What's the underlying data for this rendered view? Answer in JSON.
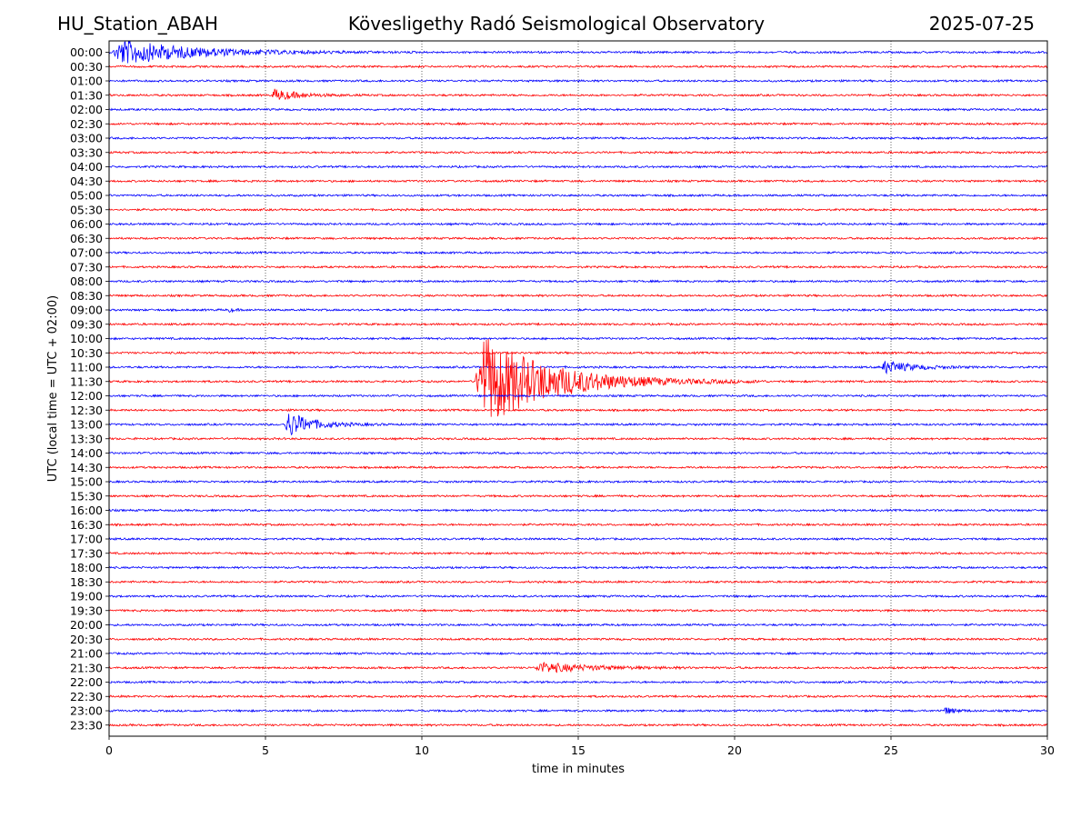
{
  "header": {
    "station": "HU_Station_ABAH",
    "title": "Kövesligethy Radó Seismological Observatory",
    "date": "2025-07-25"
  },
  "chart_data": {
    "type": "line",
    "subtype": "helicorder",
    "xlabel": "time in minutes",
    "ylabel": "UTC (local time = UTC + 02:00)",
    "xlim": [
      0,
      30
    ],
    "x_ticks": [
      0,
      5,
      10,
      15,
      20,
      25,
      30
    ],
    "grid": "vertical dotted lines at x ticks",
    "row_labels": [
      "00:00",
      "00:30",
      "01:00",
      "01:30",
      "02:00",
      "02:30",
      "03:00",
      "03:30",
      "04:00",
      "04:30",
      "05:00",
      "05:30",
      "06:00",
      "06:30",
      "07:00",
      "07:30",
      "08:00",
      "08:30",
      "09:00",
      "09:30",
      "10:00",
      "10:30",
      "11:00",
      "11:30",
      "12:00",
      "12:30",
      "13:00",
      "13:30",
      "14:00",
      "14:30",
      "15:00",
      "15:30",
      "16:00",
      "16:30",
      "17:00",
      "17:30",
      "18:00",
      "18:30",
      "19:00",
      "19:30",
      "20:00",
      "20:30",
      "21:00",
      "21:30",
      "22:00",
      "22:30",
      "23:00",
      "23:30"
    ],
    "trace_colors": [
      "#0000ff",
      "#ff0000"
    ],
    "events": [
      {
        "row": "00:00",
        "start_min": 0.1,
        "end_min": 10.0,
        "amplitude": 2.2,
        "color": "#0000ff"
      },
      {
        "row": "01:30",
        "start_min": 5.2,
        "end_min": 8.5,
        "amplitude": 1.0,
        "color": "#ff0000"
      },
      {
        "row": "09:00",
        "start_min": 3.8,
        "end_min": 4.5,
        "amplitude": 0.35,
        "color": "#0000ff"
      },
      {
        "row": "11:00",
        "start_min": 24.7,
        "end_min": 28.5,
        "amplitude": 1.1,
        "color": "#0000ff"
      },
      {
        "row": "11:30",
        "start_min": 11.7,
        "end_min": 21.0,
        "amplitude": 8.0,
        "color": "#ff0000"
      },
      {
        "row": "13:00",
        "start_min": 5.6,
        "end_min": 9.0,
        "amplitude": 2.3,
        "color": "#0000ff"
      },
      {
        "row": "21:30",
        "start_min": 13.6,
        "end_min": 20.5,
        "amplitude": 0.9,
        "color": "#ff0000"
      },
      {
        "row": "23:00",
        "start_min": 26.7,
        "end_min": 28.0,
        "amplitude": 0.6,
        "color": "#0000ff"
      }
    ]
  }
}
